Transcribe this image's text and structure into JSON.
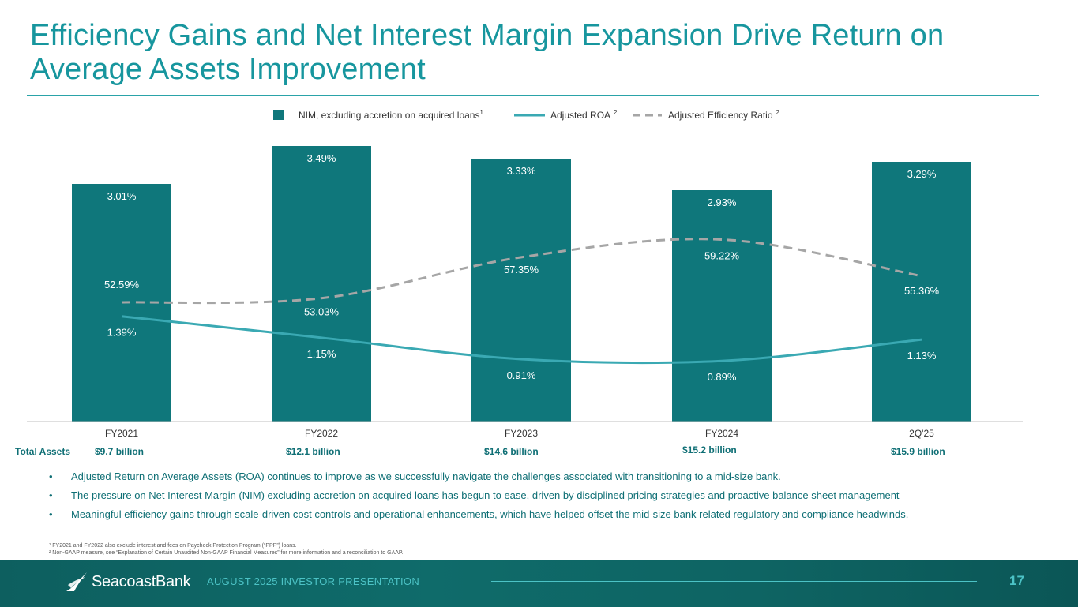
{
  "title": "Efficiency Gains and Net Interest Margin Expansion Drive Return on Average Assets Improvement",
  "legend": {
    "nim": "NIM, excluding accretion on acquired loans",
    "nim_sup": "1",
    "roa": "Adjusted ROA",
    "roa_sup": "2",
    "eff": "Adjusted Efficiency Ratio",
    "eff_sup": "2"
  },
  "colors": {
    "bar": "#0f777b",
    "roa": "#3aa9b3",
    "eff": "#a6a6a6",
    "title": "#17969e"
  },
  "chart_data": {
    "type": "bar",
    "categories": [
      "FY2021",
      "FY2022",
      "FY2023",
      "FY2024",
      "2Q'25"
    ],
    "series": [
      {
        "name": "NIM, excluding accretion on acquired loans",
        "type": "bar",
        "values": [
          3.01,
          3.49,
          3.33,
          2.93,
          3.29
        ],
        "labels": [
          "3.01%",
          "3.49%",
          "3.33%",
          "2.93%",
          "3.29%"
        ]
      },
      {
        "name": "Adjusted ROA",
        "type": "line",
        "values": [
          1.39,
          1.15,
          0.91,
          0.89,
          1.13
        ],
        "labels": [
          "1.39%",
          "1.15%",
          "0.91%",
          "0.89%",
          "1.13%"
        ]
      },
      {
        "name": "Adjusted Efficiency Ratio",
        "type": "line-dashed",
        "values": [
          52.59,
          53.03,
          57.35,
          59.22,
          55.36
        ],
        "labels": [
          "52.59%",
          "53.03%",
          "57.35%",
          "59.22%",
          "55.36%"
        ]
      }
    ],
    "legend_position": "top",
    "grid": false
  },
  "total_assets": {
    "label": "Total Assets",
    "values": [
      "$9.7 billion",
      "$12.1 billion",
      "$14.6 billion",
      "$15.2 billion",
      "$15.9 billion"
    ]
  },
  "bullets": [
    "Adjusted Return on Average Assets (ROA) continues to improve as we successfully navigate the challenges associated with transitioning to a mid-size bank.",
    "The pressure on Net Interest Margin (NIM) excluding accretion on acquired loans has begun to ease, driven by disciplined pricing strategies and proactive balance sheet management",
    "Meaningful efficiency gains through scale-driven cost controls and operational enhancements, which have helped offset the mid-size bank related regulatory and compliance headwinds."
  ],
  "footnotes": [
    "¹ FY2021 and FY2022 also exclude interest and fees on Paycheck Protection Program (“PPP”) loans.",
    "² Non-GAAP measure, see “Explanation of Certain Unaudited Non-GAAP Financial Measures” for more information and a reconciliation to GAAP."
  ],
  "footer": {
    "logo_text": "SeacoastBank",
    "caption": "AUGUST 2025 INVESTOR PRESENTATION",
    "page": "17"
  }
}
